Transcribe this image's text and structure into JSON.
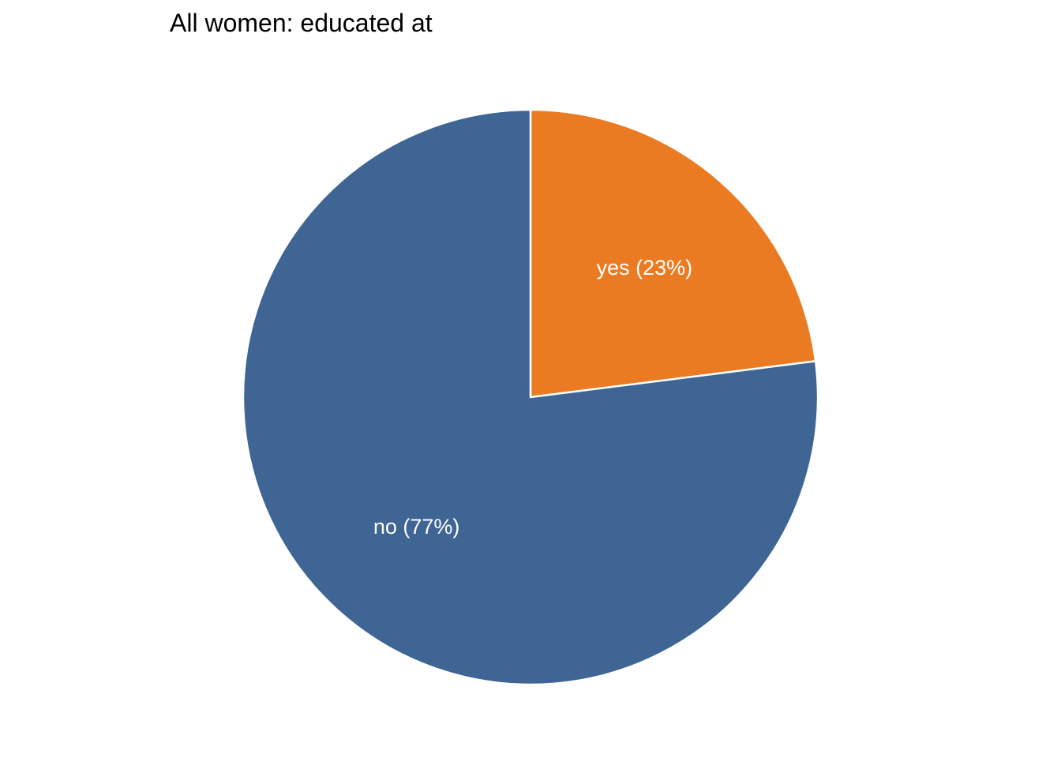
{
  "chart_data": {
    "type": "pie",
    "title": "All women: educated at",
    "slices": [
      {
        "label": "yes (23%)",
        "category": "yes",
        "value": 23,
        "color": "#eb7b23"
      },
      {
        "label": "no (77%)",
        "category": "no",
        "value": 77,
        "color": "#3f6594"
      }
    ],
    "start": "12 o'clock",
    "direction": "clockwise",
    "separator_color": "#ffffff"
  }
}
